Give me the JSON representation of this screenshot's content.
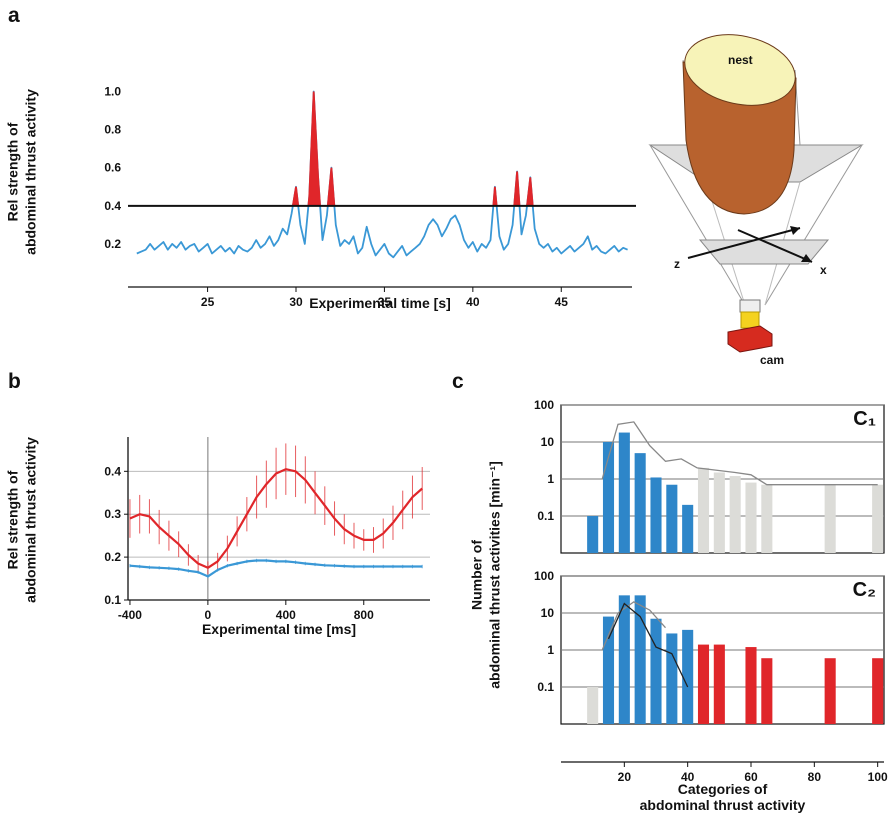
{
  "panel_labels": [
    "a",
    "b",
    "c"
  ],
  "diagram": {
    "labels": [
      "nest",
      "z",
      "x",
      "cam"
    ]
  },
  "chart_data": [
    {
      "type": "line",
      "xlabel": "Experimental time [s]",
      "ylabel": [
        "Rel strength of",
        "abdominal thrust activity"
      ],
      "xlim": [
        20.5,
        49
      ],
      "xticks": [
        25,
        30,
        35,
        40,
        45
      ],
      "ylim": [
        0.1,
        1.05
      ],
      "yticks": [
        0.2,
        0.4,
        0.6,
        0.8,
        {
          "value": 1.0,
          "label": "1.0"
        }
      ],
      "threshold": 0.4,
      "highlight_color": "#e0262a",
      "x": [
        21,
        21.25,
        21.5,
        21.75,
        22,
        22.25,
        22.5,
        22.75,
        23,
        23.25,
        23.5,
        23.75,
        24,
        24.25,
        24.5,
        24.75,
        25,
        25.25,
        25.5,
        25.75,
        26,
        26.25,
        26.5,
        26.75,
        27,
        27.25,
        27.5,
        27.75,
        28,
        28.25,
        28.5,
        28.75,
        29,
        29.25,
        29.5,
        29.75,
        30,
        30.25,
        30.5,
        30.75,
        31,
        31.25,
        31.5,
        31.75,
        32,
        32.25,
        32.5,
        32.75,
        33,
        33.25,
        33.5,
        33.75,
        34,
        34.25,
        34.5,
        34.75,
        35,
        35.25,
        35.5,
        35.75,
        36,
        36.25,
        36.5,
        36.75,
        37,
        37.25,
        37.5,
        37.75,
        38,
        38.25,
        38.5,
        38.75,
        39,
        39.25,
        39.5,
        39.75,
        40,
        40.25,
        40.5,
        40.75,
        41,
        41.25,
        41.5,
        41.75,
        42,
        42.25,
        42.5,
        42.75,
        43,
        43.25,
        43.5,
        43.75,
        44,
        44.25,
        44.5,
        44.75,
        45,
        45.25,
        45.5,
        45.75,
        46,
        46.25,
        46.5,
        46.75,
        47,
        47.25,
        47.5,
        47.75,
        48,
        48.25,
        48.5,
        48.75
      ],
      "series": [
        {
          "color": "#3a98d6",
          "values": [
            0.15,
            0.16,
            0.17,
            0.2,
            0.17,
            0.19,
            0.21,
            0.17,
            0.2,
            0.18,
            0.21,
            0.17,
            0.19,
            0.2,
            0.16,
            0.18,
            0.2,
            0.15,
            0.17,
            0.19,
            0.16,
            0.18,
            0.15,
            0.19,
            0.17,
            0.16,
            0.18,
            0.22,
            0.18,
            0.2,
            0.24,
            0.19,
            0.22,
            0.28,
            0.25,
            0.36,
            0.5,
            0.3,
            0.2,
            0.45,
            1.0,
            0.55,
            0.22,
            0.35,
            0.6,
            0.3,
            0.19,
            0.22,
            0.2,
            0.24,
            0.15,
            0.18,
            0.29,
            0.2,
            0.14,
            0.17,
            0.2,
            0.15,
            0.13,
            0.16,
            0.19,
            0.14,
            0.16,
            0.18,
            0.2,
            0.24,
            0.3,
            0.33,
            0.3,
            0.24,
            0.28,
            0.33,
            0.35,
            0.3,
            0.22,
            0.18,
            0.21,
            0.16,
            0.2,
            0.18,
            0.22,
            0.5,
            0.24,
            0.17,
            0.2,
            0.3,
            0.58,
            0.25,
            0.35,
            0.55,
            0.28,
            0.2,
            0.18,
            0.2,
            0.16,
            0.18,
            0.15,
            0.17,
            0.19,
            0.16,
            0.18,
            0.2,
            0.24,
            0.17,
            0.19,
            0.16,
            0.15,
            0.17,
            0.19,
            0.16,
            0.18,
            0.17
          ]
        }
      ]
    },
    {
      "type": "line",
      "xlabel": "Experimental time [ms]",
      "ylabel": [
        "Rel strength of",
        "abdominal thrust activity"
      ],
      "xlim": [
        -410,
        1140
      ],
      "xticks": [
        -400,
        0,
        400,
        800
      ],
      "ylim": [
        0.1,
        0.48
      ],
      "yticks": [
        0.1,
        0.2,
        0.3,
        0.4
      ],
      "grid": true,
      "x": [
        -400,
        -350,
        -300,
        -250,
        -200,
        -150,
        -100,
        -50,
        0,
        50,
        100,
        150,
        200,
        250,
        300,
        350,
        400,
        450,
        500,
        550,
        600,
        650,
        700,
        750,
        800,
        850,
        900,
        950,
        1000,
        1050,
        1100
      ],
      "series": [
        {
          "color": "#e0262a",
          "values": [
            0.29,
            0.3,
            0.295,
            0.27,
            0.25,
            0.23,
            0.205,
            0.185,
            0.175,
            0.19,
            0.22,
            0.26,
            0.3,
            0.34,
            0.37,
            0.395,
            0.405,
            0.4,
            0.38,
            0.35,
            0.32,
            0.29,
            0.265,
            0.25,
            0.24,
            0.24,
            0.255,
            0.28,
            0.31,
            0.34,
            0.36
          ],
          "errors": [
            0.045,
            0.045,
            0.04,
            0.04,
            0.035,
            0.03,
            0.025,
            0.02,
            0.015,
            0.02,
            0.03,
            0.035,
            0.04,
            0.05,
            0.055,
            0.06,
            0.06,
            0.06,
            0.055,
            0.05,
            0.045,
            0.04,
            0.035,
            0.03,
            0.025,
            0.03,
            0.035,
            0.04,
            0.045,
            0.05,
            0.05
          ]
        },
        {
          "color": "#3a98d6",
          "values": [
            0.18,
            0.178,
            0.176,
            0.175,
            0.174,
            0.172,
            0.168,
            0.165,
            0.155,
            0.17,
            0.18,
            0.185,
            0.19,
            0.192,
            0.192,
            0.19,
            0.19,
            0.188,
            0.185,
            0.183,
            0.181,
            0.18,
            0.179,
            0.178,
            0.178,
            0.178,
            0.178,
            0.178,
            0.178,
            0.178,
            0.178
          ],
          "errors": [
            0.004,
            0.004,
            0.004,
            0.004,
            0.004,
            0.004,
            0.004,
            0.004,
            0.004,
            0.004,
            0.004,
            0.004,
            0.004,
            0.004,
            0.004,
            0.004,
            0.004,
            0.004,
            0.004,
            0.004,
            0.004,
            0.004,
            0.004,
            0.004,
            0.004,
            0.004,
            0.004,
            0.004,
            0.004,
            0.004,
            0.004
          ]
        }
      ]
    },
    {
      "type": "bar",
      "title": "C₁",
      "log": true,
      "grid": true,
      "ylabel": [
        "Number of",
        "abdominal thrust activities [min⁻¹]"
      ],
      "xlim": [
        0,
        102
      ],
      "ylim": [
        0.01,
        100
      ],
      "yticks": [
        0.1,
        1,
        10,
        100
      ],
      "series": [
        {
          "color": "#dcdcd8",
          "x": [
            45,
            50,
            55,
            60,
            65,
            85,
            100
          ],
          "values": [
            2,
            1.5,
            1.2,
            0.8,
            0.7,
            0.7,
            0.7
          ]
        },
        {
          "color": "#2e86c9",
          "x": [
            10,
            15,
            20,
            25,
            30,
            35,
            40
          ],
          "values": [
            0.1,
            10,
            18,
            5,
            1.1,
            0.7,
            0.2
          ]
        }
      ],
      "lines": [
        {
          "color": "#888888",
          "x": [
            13,
            18,
            23,
            28,
            33,
            38,
            43,
            55,
            60,
            65,
            100
          ],
          "values": [
            1,
            30,
            35,
            8,
            3,
            3.5,
            2,
            1.5,
            1.3,
            0.7,
            0.7
          ]
        }
      ]
    },
    {
      "type": "bar",
      "title": "C₂",
      "log": true,
      "grid": true,
      "xlabel": [
        "Categories of",
        "abdominal thrust activity"
      ],
      "xlim": [
        0,
        102
      ],
      "ylim": [
        0.01,
        100
      ],
      "yticks": [
        0.1,
        1,
        10,
        100
      ],
      "xticks": [
        20,
        40,
        60,
        80,
        100
      ],
      "series": [
        {
          "color": "#dcdcd8",
          "x": [
            10
          ],
          "values": [
            0.1
          ]
        },
        {
          "color": "#2e86c9",
          "x": [
            15,
            20,
            25,
            30,
            35,
            40
          ],
          "values": [
            8,
            30,
            30,
            7,
            2.8,
            3.5
          ]
        },
        {
          "color": "#e0262a",
          "x": [
            45,
            50,
            60,
            65,
            85,
            100
          ],
          "values": [
            1.4,
            1.4,
            1.2,
            0.6,
            0.6,
            0.6
          ]
        }
      ],
      "lines": [
        {
          "color": "#888888",
          "x": [
            13,
            18,
            23,
            28,
            33
          ],
          "values": [
            1,
            10,
            20,
            12,
            4
          ]
        },
        {
          "color": "#222222",
          "x": [
            15,
            20,
            25,
            30,
            35,
            40
          ],
          "values": [
            2,
            18,
            8,
            1.2,
            0.8,
            0.1
          ]
        }
      ]
    }
  ]
}
